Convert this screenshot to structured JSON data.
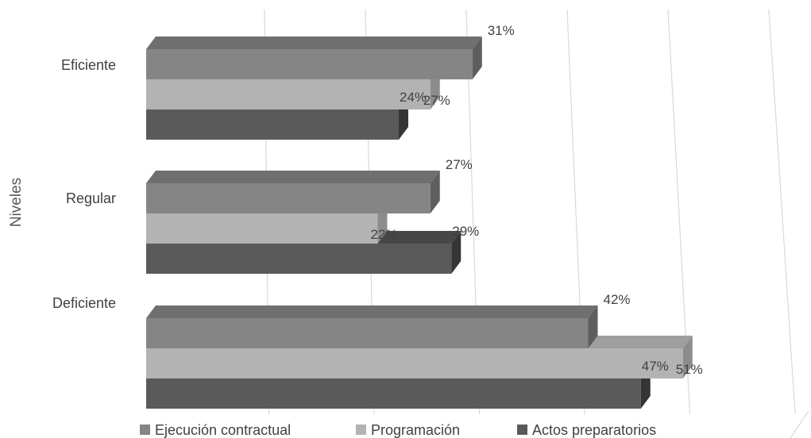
{
  "chart_data": {
    "type": "bar",
    "orientation": "horizontal",
    "three_d": true,
    "ylabel": "Niveles",
    "categories": [
      "Eficiente",
      "Regular",
      "Deficiente"
    ],
    "series": [
      {
        "name": "Ejecución contractual",
        "values": [
          31,
          27,
          42
        ],
        "color": "#858585",
        "side_color": "#5e5e5e",
        "top_color": "#6f6f6f"
      },
      {
        "name": "Programación",
        "values": [
          27,
          22,
          51
        ],
        "color": "#b3b3b3",
        "side_color": "#8c8c8c",
        "top_color": "#9e9e9e"
      },
      {
        "name": "Actos preparatorios",
        "values": [
          24,
          29,
          47
        ],
        "color": "#5a5a5a",
        "side_color": "#353535",
        "top_color": "#474747"
      }
    ],
    "value_suffix": "%",
    "xlim": [
      0,
      60
    ],
    "grid": true,
    "legend_position": "bottom"
  }
}
